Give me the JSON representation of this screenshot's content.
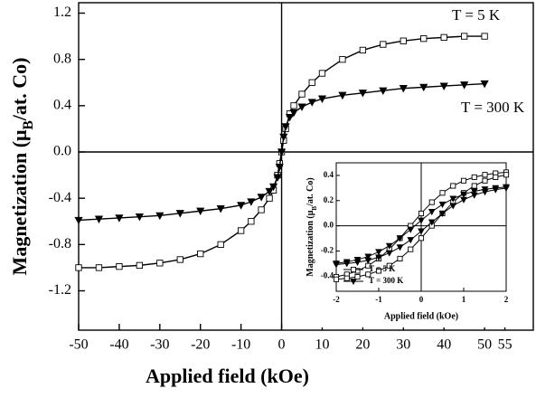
{
  "chart_data": [
    {
      "type": "line",
      "x_label": "Applied field (kOe)",
      "y_label": {
        "text": "Magnetization (μ",
        "sub": "B",
        "rest": "/at. Co)"
      },
      "x": [
        -50,
        -45,
        -40,
        -35,
        -30,
        -25,
        -20,
        -15,
        -10,
        -7.5,
        -5,
        -3,
        -2,
        -1,
        -0.5,
        0,
        0.5,
        1,
        2,
        3,
        5,
        7.5,
        10,
        15,
        20,
        25,
        30,
        35,
        40,
        45,
        50
      ],
      "series": [
        {
          "name": "T = 5 K",
          "color": "#000000",
          "marker": "square-open",
          "values": [
            -1.0,
            -1.0,
            -0.99,
            -0.98,
            -0.96,
            -0.93,
            -0.88,
            -0.8,
            -0.68,
            -0.6,
            -0.5,
            -0.4,
            -0.33,
            -0.2,
            -0.1,
            0,
            0.1,
            0.2,
            0.33,
            0.4,
            0.5,
            0.6,
            0.68,
            0.8,
            0.88,
            0.93,
            0.96,
            0.98,
            0.99,
            1.0,
            1.0
          ]
        },
        {
          "name": "T = 300 K",
          "color": "#000000",
          "marker": "triangle-down-filled",
          "values": [
            -0.59,
            -0.58,
            -0.57,
            -0.56,
            -0.55,
            -0.53,
            -0.51,
            -0.49,
            -0.46,
            -0.43,
            -0.39,
            -0.34,
            -0.3,
            -0.22,
            -0.13,
            0,
            0.13,
            0.22,
            0.3,
            0.34,
            0.39,
            0.43,
            0.46,
            0.49,
            0.51,
            0.53,
            0.55,
            0.56,
            0.57,
            0.58,
            0.59
          ]
        }
      ],
      "xlim": [
        -50,
        62
      ],
      "ylim": [
        -1.54,
        1.29
      ],
      "xticks": [
        -50,
        -40,
        -30,
        -20,
        -10,
        0,
        10,
        20,
        30,
        40,
        50,
        55
      ],
      "yticks": [
        -1.2,
        -0.8,
        -0.4,
        {
          "value": 0,
          "label": "0.0"
        },
        0.4,
        0.8,
        1.2
      ],
      "zero_lines": true
    },
    {
      "type": "line",
      "x_label": "Applied field (kOe)",
      "y_label": {
        "text": "Magnetization (μ",
        "sub": "B",
        "rest": "/at. Co)"
      },
      "x": [
        -2,
        -1.75,
        -1.5,
        -1.25,
        -1,
        -0.75,
        -0.5,
        -0.25,
        0,
        0.25,
        0.5,
        0.75,
        1,
        1.25,
        1.5,
        1.75,
        2
      ],
      "series": [
        {
          "name": "T = 5 K",
          "color": "#000000",
          "marker": "square-open",
          "branches": [
            [
              -0.405,
              -0.386,
              -0.358,
              -0.317,
              -0.261,
              -0.187,
              -0.098,
              0,
              0.098,
              0.187,
              0.261,
              0.317,
              0.358,
              0.386,
              0.405,
              0.417,
              0.425
            ],
            [
              -0.425,
              -0.417,
              -0.405,
              -0.386,
              -0.358,
              -0.317,
              -0.261,
              -0.187,
              -0.098,
              0,
              0.098,
              0.187,
              0.261,
              0.317,
              0.358,
              0.386,
              0.405
            ]
          ]
        },
        {
          "name": "T = 300 K",
          "color": "#000000",
          "marker": "triangle-down-filled",
          "branches": [
            [
              -0.299,
              -0.287,
              -0.269,
              -0.244,
              -0.207,
              -0.159,
              -0.098,
              -0.029,
              0.043,
              0.112,
              0.17,
              0.216,
              0.25,
              0.274,
              0.29,
              0.3,
              0.308
            ],
            [
              -0.308,
              -0.3,
              -0.29,
              -0.274,
              -0.25,
              -0.216,
              -0.17,
              -0.112,
              -0.043,
              0.029,
              0.098,
              0.159,
              0.207,
              0.244,
              0.269,
              0.287,
              0.299
            ]
          ]
        }
      ],
      "xlim": [
        -2,
        2
      ],
      "ylim": [
        -0.52,
        0.5
      ],
      "xticks": [
        -2,
        -1,
        0,
        1,
        2
      ],
      "yticks": [
        -0.4,
        -0.2,
        {
          "value": 0,
          "label": "0.0"
        },
        0.2,
        0.4
      ],
      "zero_lines": true,
      "legend": "lower left"
    }
  ]
}
